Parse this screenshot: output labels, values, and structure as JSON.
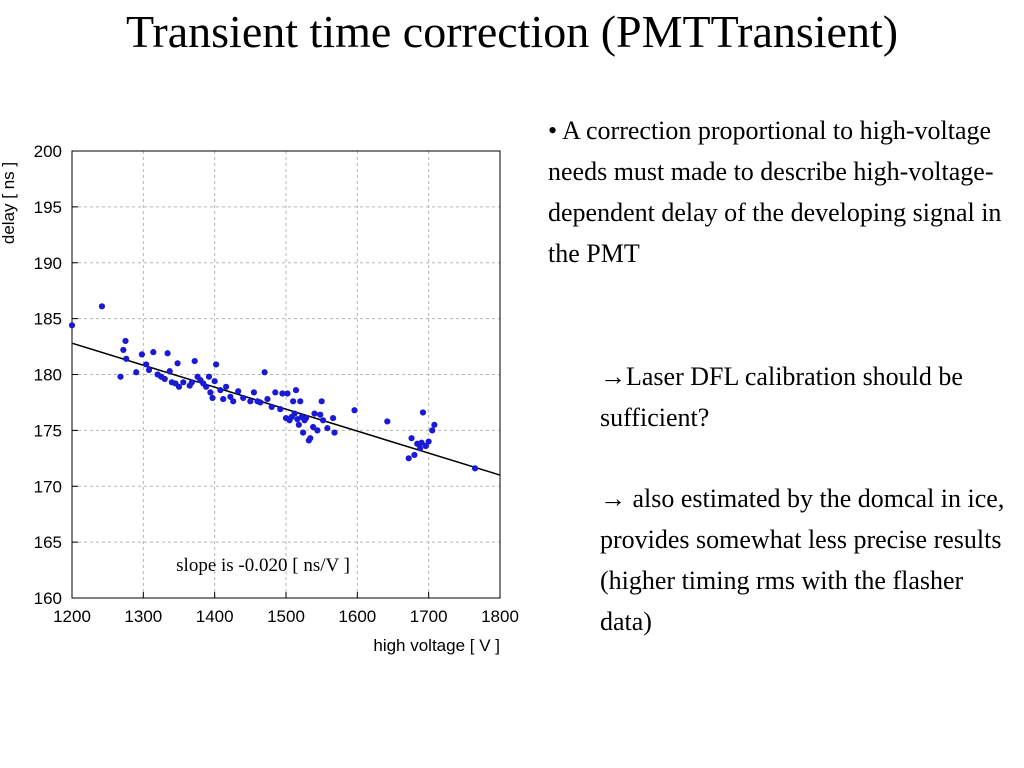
{
  "title": "Transient time correction (PMTTransient)",
  "chart_data": {
    "type": "scatter",
    "xlabel": "high voltage [ V ]",
    "ylabel": "delay [ ns ]",
    "xlim": [
      1200,
      1800
    ],
    "ylim": [
      160,
      200
    ],
    "xticks": [
      1200,
      1300,
      1400,
      1500,
      1600,
      1700,
      1800
    ],
    "yticks": [
      160,
      165,
      170,
      175,
      180,
      185,
      190,
      195,
      200
    ],
    "grid": "dashed",
    "annotation": "slope is -0.020 [ ns/V ]",
    "point_color": "#1a1ad6",
    "fit_line": {
      "x": [
        1200,
        1800
      ],
      "y": [
        182.8,
        171.0
      ]
    },
    "points": [
      [
        1200,
        184.4
      ],
      [
        1242,
        186.1
      ],
      [
        1268,
        179.8
      ],
      [
        1272,
        182.2
      ],
      [
        1275,
        183.0
      ],
      [
        1276,
        181.4
      ],
      [
        1290,
        180.2
      ],
      [
        1298,
        181.8
      ],
      [
        1304,
        180.9
      ],
      [
        1308,
        180.4
      ],
      [
        1314,
        182.0
      ],
      [
        1320,
        180.0
      ],
      [
        1325,
        179.8
      ],
      [
        1330,
        179.6
      ],
      [
        1334,
        181.9
      ],
      [
        1337,
        180.3
      ],
      [
        1340,
        179.3
      ],
      [
        1345,
        179.2
      ],
      [
        1348,
        181.0
      ],
      [
        1350,
        178.9
      ],
      [
        1356,
        179.3
      ],
      [
        1365,
        179.0
      ],
      [
        1368,
        179.3
      ],
      [
        1372,
        181.2
      ],
      [
        1376,
        179.8
      ],
      [
        1380,
        179.5
      ],
      [
        1384,
        179.2
      ],
      [
        1388,
        178.9
      ],
      [
        1392,
        179.8
      ],
      [
        1394,
        178.4
      ],
      [
        1397,
        177.9
      ],
      [
        1400,
        179.4
      ],
      [
        1402,
        180.9
      ],
      [
        1408,
        178.6
      ],
      [
        1412,
        177.8
      ],
      [
        1416,
        178.9
      ],
      [
        1422,
        178.0
      ],
      [
        1426,
        177.6
      ],
      [
        1433,
        178.5
      ],
      [
        1440,
        177.9
      ],
      [
        1450,
        177.6
      ],
      [
        1455,
        178.4
      ],
      [
        1460,
        177.6
      ],
      [
        1464,
        177.5
      ],
      [
        1470,
        180.2
      ],
      [
        1474,
        177.8
      ],
      [
        1480,
        177.1
      ],
      [
        1485,
        178.4
      ],
      [
        1492,
        176.9
      ],
      [
        1495,
        178.3
      ],
      [
        1500,
        176.1
      ],
      [
        1502,
        178.3
      ],
      [
        1505,
        175.9
      ],
      [
        1508,
        176.2
      ],
      [
        1510,
        177.6
      ],
      [
        1512,
        176.5
      ],
      [
        1514,
        178.6
      ],
      [
        1516,
        176.0
      ],
      [
        1518,
        175.5
      ],
      [
        1520,
        177.6
      ],
      [
        1522,
        176.2
      ],
      [
        1524,
        174.8
      ],
      [
        1526,
        175.9
      ],
      [
        1528,
        176.1
      ],
      [
        1532,
        174.1
      ],
      [
        1534,
        174.3
      ],
      [
        1538,
        175.3
      ],
      [
        1540,
        176.5
      ],
      [
        1544,
        175.0
      ],
      [
        1548,
        176.4
      ],
      [
        1550,
        177.6
      ],
      [
        1552,
        175.9
      ],
      [
        1558,
        175.2
      ],
      [
        1566,
        176.1
      ],
      [
        1568,
        174.8
      ],
      [
        1596,
        176.8
      ],
      [
        1642,
        175.8
      ],
      [
        1672,
        172.5
      ],
      [
        1676,
        174.3
      ],
      [
        1680,
        172.8
      ],
      [
        1684,
        173.8
      ],
      [
        1688,
        173.4
      ],
      [
        1690,
        173.9
      ],
      [
        1692,
        176.6
      ],
      [
        1696,
        173.6
      ],
      [
        1700,
        174.0
      ],
      [
        1705,
        175.0
      ],
      [
        1708,
        175.5
      ],
      [
        1765,
        171.6
      ]
    ]
  },
  "text": {
    "bullet": "• A correction proportional to high-voltage needs must made to describe high-voltage-dependent delay of the developing signal in the PMT",
    "point2": "→Laser DFL calibration should be sufficient?",
    "point3": "→ also estimated by the domcal in ice, provides somewhat less precise results (higher timing rms with the flasher data)"
  }
}
